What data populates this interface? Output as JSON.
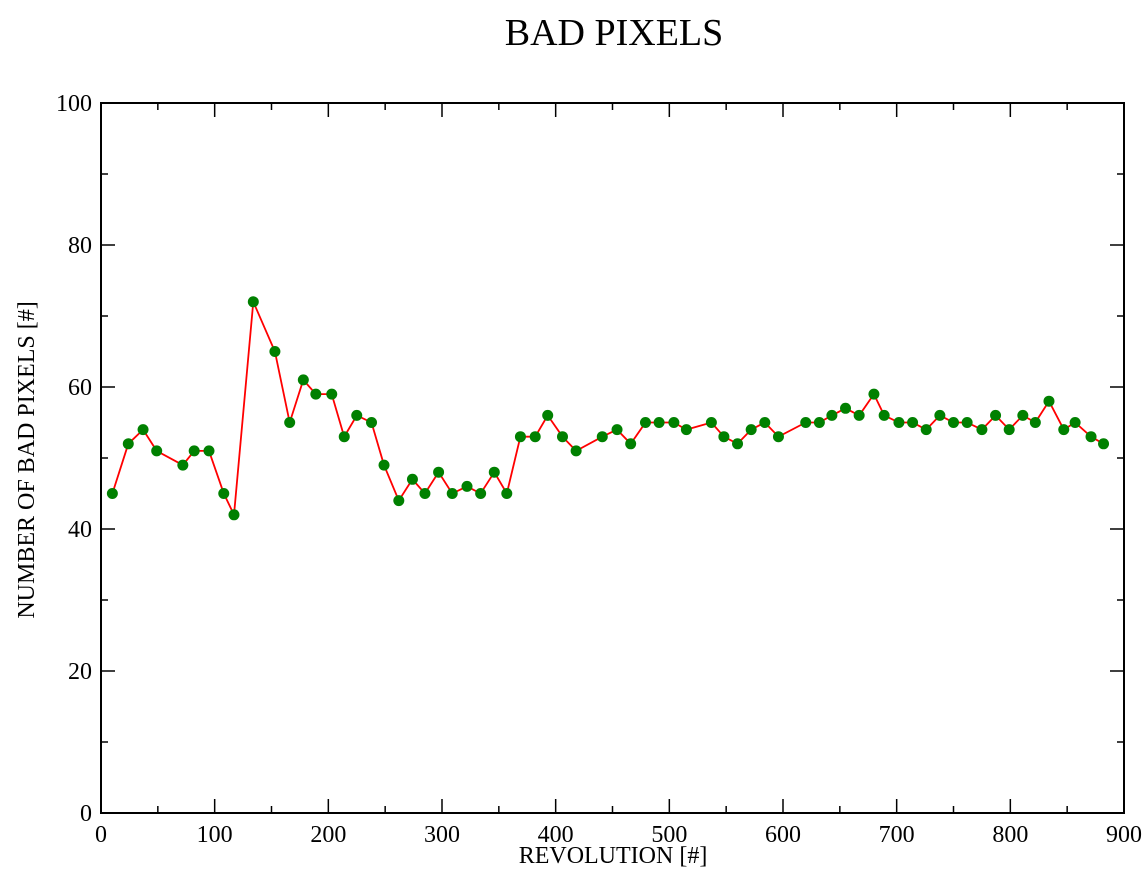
{
  "chart_data": {
    "type": "line",
    "title": "BAD PIXELS",
    "xlabel": "REVOLUTION [#]",
    "ylabel": "NUMBER OF BAD PIXELS [#]",
    "xlim": [
      0,
      900
    ],
    "ylim": [
      0,
      100
    ],
    "x_ticks": [
      0,
      100,
      200,
      300,
      400,
      500,
      600,
      700,
      800,
      900
    ],
    "y_ticks": [
      0,
      20,
      40,
      60,
      80,
      100
    ],
    "grid": false,
    "line_color": "#ff0000",
    "marker_color": "#008000",
    "series": [
      {
        "x": [
          10,
          24,
          37,
          49,
          72,
          82,
          95,
          108,
          117,
          134,
          153,
          166,
          178,
          189,
          203,
          214,
          225,
          238,
          249,
          262,
          274,
          285,
          297,
          309,
          322,
          334,
          346,
          357,
          369,
          382,
          393,
          406,
          418,
          441,
          454,
          466,
          479,
          491,
          504,
          515,
          537,
          548,
          560,
          572,
          584,
          596,
          620,
          632,
          643,
          655,
          667,
          680,
          689,
          702,
          714,
          726,
          738,
          750,
          762,
          775,
          787,
          799,
          811,
          822,
          834,
          847,
          857,
          871,
          882
        ],
        "y": [
          45,
          52,
          54,
          51,
          49,
          51,
          51,
          45,
          42,
          72,
          65,
          55,
          61,
          59,
          59,
          53,
          56,
          55,
          49,
          44,
          47,
          45,
          48,
          45,
          46,
          45,
          48,
          45,
          53,
          53,
          56,
          53,
          51,
          53,
          54,
          52,
          55,
          55,
          55,
          54,
          55,
          53,
          52,
          54,
          55,
          53,
          55,
          55,
          56,
          57,
          56,
          59,
          56,
          55,
          55,
          54,
          56,
          55,
          55,
          54,
          56,
          54,
          56,
          55,
          58,
          54,
          55,
          53,
          52
        ]
      }
    ]
  }
}
